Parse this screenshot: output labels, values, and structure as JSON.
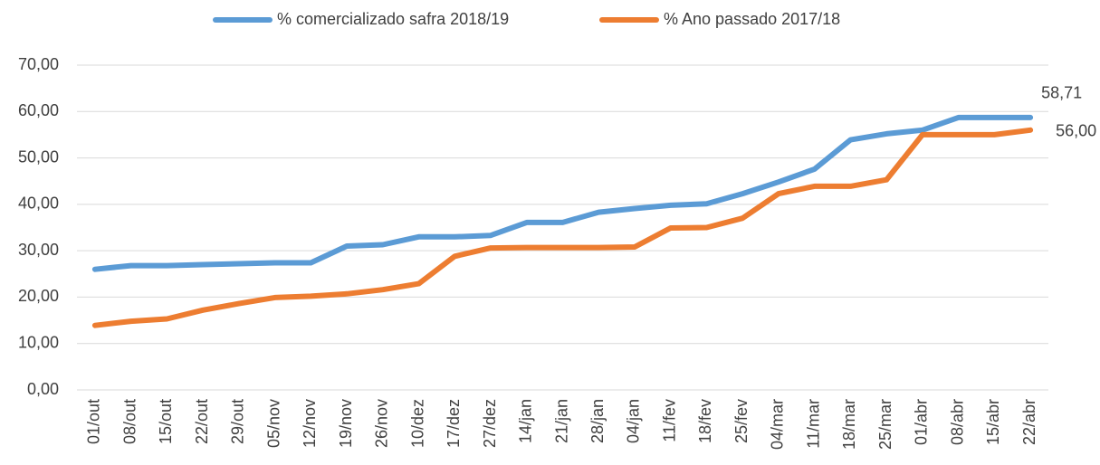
{
  "chart_data": {
    "type": "line",
    "categories": [
      "01/out",
      "08/out",
      "15/out",
      "22/out",
      "29/out",
      "05/nov",
      "12/nov",
      "19/nov",
      "26/nov",
      "10/dez",
      "17/dez",
      "27/dez",
      "14/jan",
      "21/jan",
      "28/jan",
      "04/jan",
      "11/fev",
      "18/fev",
      "25/fev",
      "04/mar",
      "11/mar",
      "18/mar",
      "25/mar",
      "01/abr",
      "08/abr",
      "15/abr",
      "22/abr"
    ],
    "series": [
      {
        "name": "% comercializado safra 2018/19",
        "color": "#5b9bd5",
        "values": [
          26,
          26.8,
          26.8,
          27,
          27.2,
          27.4,
          27.4,
          31,
          31.3,
          33,
          33,
          33.3,
          36.1,
          36.1,
          38.3,
          39.1,
          39.8,
          40.1,
          42.3,
          44.8,
          47.6,
          53.9,
          55.2,
          56,
          58.71,
          58.71,
          58.71
        ],
        "value_labels": [
          null,
          null,
          null,
          null,
          null,
          null,
          null,
          null,
          null,
          null,
          null,
          null,
          null,
          null,
          null,
          null,
          null,
          null,
          null,
          null,
          null,
          null,
          null,
          null,
          null,
          null,
          "58,71"
        ]
      },
      {
        "name": "% Ano passado 2017/18",
        "color": "#ed7d31",
        "values": [
          13.9,
          14.8,
          15.3,
          17.2,
          18.6,
          19.9,
          20.2,
          20.7,
          21.6,
          22.9,
          28.8,
          30.6,
          30.7,
          30.7,
          30.7,
          30.8,
          34.9,
          35,
          37,
          42.3,
          43.9,
          43.9,
          45.3,
          55,
          55,
          55,
          56
        ],
        "value_labels": [
          null,
          null,
          null,
          null,
          null,
          null,
          null,
          null,
          null,
          null,
          null,
          null,
          null,
          null,
          null,
          null,
          null,
          null,
          null,
          null,
          null,
          null,
          null,
          null,
          null,
          null,
          "56,00"
        ]
      }
    ],
    "ylim": [
      0,
      70
    ],
    "yticks": [
      {
        "value": 0,
        "label": "0,00"
      },
      {
        "value": 10,
        "label": "10,00"
      },
      {
        "value": 20,
        "label": "20,00"
      },
      {
        "value": 30,
        "label": "30,00"
      },
      {
        "value": 40,
        "label": "40,00"
      },
      {
        "value": 50,
        "label": "50,00"
      },
      {
        "value": 60,
        "label": "60,00"
      },
      {
        "value": 70,
        "label": "70,00"
      }
    ],
    "grid": true,
    "legend": "top"
  }
}
